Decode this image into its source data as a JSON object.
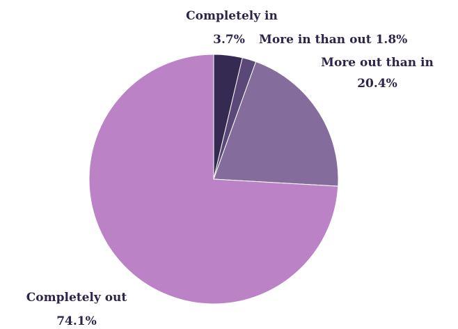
{
  "chart_data": {
    "type": "pie",
    "title": "",
    "start_angle_deg": 0,
    "direction": "clockwise",
    "slices": [
      {
        "label": "Completely in",
        "value": 3.7,
        "value_label": "3.7%",
        "color": "#342a52"
      },
      {
        "label": "More in than out",
        "value": 1.8,
        "value_label": "1.8%",
        "color": "#5a4878"
      },
      {
        "label": "More out than in",
        "value": 20.4,
        "value_label": "20.4%",
        "color": "#846d9c"
      },
      {
        "label": "Completely out",
        "value": 74.1,
        "value_label": "74.1%",
        "color": "#bb83c6"
      }
    ]
  }
}
